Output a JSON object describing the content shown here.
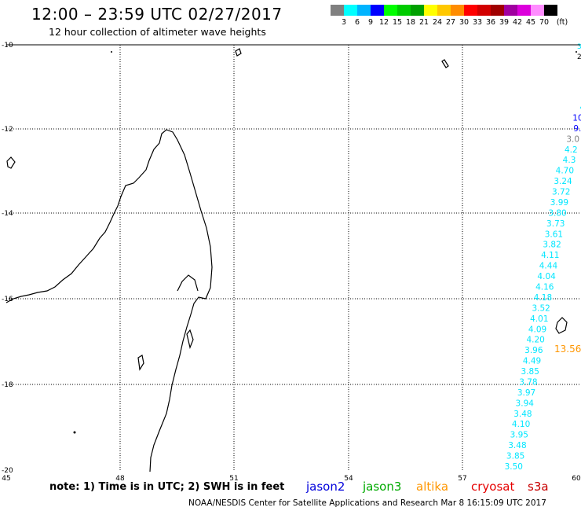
{
  "header": {
    "title": "12:00 – 23:59 UTC 02/27/2017",
    "subtitle": "12 hour collection of altimeter wave heights"
  },
  "legend": {
    "colors": [
      "#808080",
      "#00ffff",
      "#00b4ff",
      "#0000ff",
      "#00ff00",
      "#00cc00",
      "#00a000",
      "#ffff00",
      "#ffc800",
      "#ff8c00",
      "#ff0000",
      "#d20000",
      "#a00000",
      "#a000a0",
      "#dc00dc",
      "#ff8cff",
      "#000000"
    ],
    "labels": [
      "3",
      "6",
      "9",
      "12",
      "15",
      "18",
      "21",
      "24",
      "27",
      "30",
      "33",
      "36",
      "39",
      "42",
      "45",
      "70",
      "(ft)"
    ]
  },
  "map": {
    "lat_labels": [
      "-10",
      "-12",
      "-14",
      "-16",
      "-18",
      "-20"
    ],
    "lon_labels": [
      "45",
      "48",
      "51",
      "54",
      "57",
      "60"
    ],
    "right_edge_labels": [
      "3",
      "2"
    ]
  },
  "wave_track": {
    "color_cyan": "#00e6ff",
    "values": [
      "4",
      "10",
      "9.",
      "3.0",
      "4.2",
      "4.3",
      "4.70",
      "3.24",
      "3.72",
      "3.99",
      "3.80",
      "3.73",
      "3.61",
      "3.82",
      "4.11",
      "4.44",
      "4.04",
      "4.16",
      "4.18",
      "3.52",
      "4.01",
      "4.09",
      "4.20",
      "3.96",
      "4.49",
      "3.85",
      "3.78",
      "3.97",
      "3.94",
      "3.48",
      "4.10",
      "3.95",
      "3.48",
      "3.85",
      "3.50"
    ],
    "orange_value": "13.56"
  },
  "footer": {
    "note": "note:  1) Time is in UTC;  2) SWH is in feet",
    "satellites": [
      {
        "name": "jason2",
        "color": "#0000dc"
      },
      {
        "name": "jason3",
        "color": "#00aa00"
      },
      {
        "name": "altika",
        "color": "#ff9600"
      },
      {
        "name": "cryosat",
        "color": "#e60000"
      },
      {
        "name": "s3a",
        "color": "#c80000"
      }
    ],
    "credit": "NOAA/NESDIS Center for Satellite Applications and Research   Mar  8 16:15:09 UTC 2017"
  }
}
